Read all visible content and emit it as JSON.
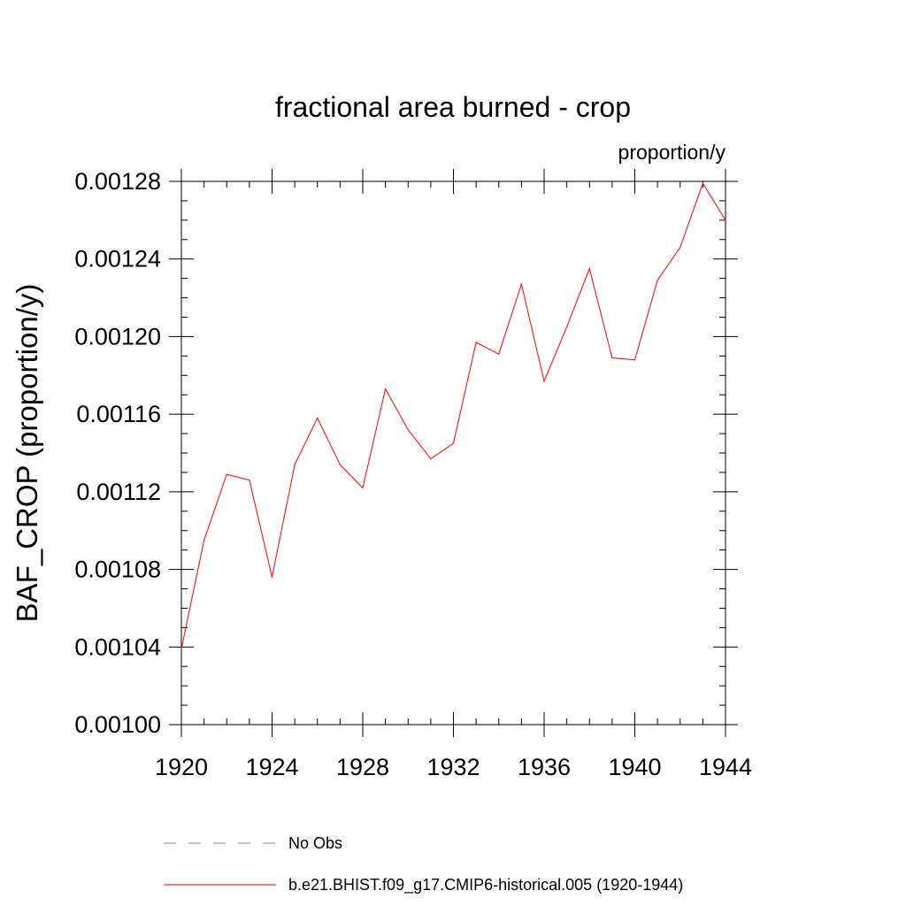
{
  "chart_data": {
    "type": "line",
    "title": "fractional area burned - crop",
    "units_label": "proportion/y",
    "xlabel": "",
    "ylabel": "BAF_CROP  (proportion/y)",
    "xlim": [
      1920,
      1944
    ],
    "ylim": [
      0.001,
      0.00128
    ],
    "x_ticks": [
      1920,
      1924,
      1928,
      1932,
      1936,
      1940,
      1944
    ],
    "x_tick_labels": [
      "1920",
      "1924",
      "1928",
      "1932",
      "1936",
      "1940",
      "1944"
    ],
    "y_ticks": [
      0.001,
      0.00104,
      0.00108,
      0.00112,
      0.00116,
      0.0012,
      0.00124,
      0.00128
    ],
    "y_tick_labels": [
      "0.00100",
      "0.00104",
      "0.00108",
      "0.00112",
      "0.00116",
      "0.00120",
      "0.00124",
      "0.00128"
    ],
    "grid": false,
    "series": [
      {
        "name": "b.e21.BHIST.f09_g17.CMIP6-historical.005 (1920-1944)",
        "color": "#ff0000",
        "x": [
          1920,
          1921,
          1922,
          1923,
          1924,
          1925,
          1926,
          1927,
          1928,
          1929,
          1930,
          1931,
          1932,
          1933,
          1934,
          1935,
          1936,
          1937,
          1938,
          1939,
          1940,
          1941,
          1942,
          1943,
          1944
        ],
        "values": [
          0.001039,
          0.001095,
          0.001129,
          0.001126,
          0.001076,
          0.001134,
          0.001158,
          0.001134,
          0.001122,
          0.001173,
          0.001152,
          0.001137,
          0.001145,
          0.001197,
          0.001191,
          0.001227,
          0.001177,
          0.001205,
          0.001235,
          0.001189,
          0.001188,
          0.001229,
          0.001246,
          0.001279,
          0.00126
        ]
      }
    ],
    "legend": {
      "position": "bottom",
      "entries": [
        {
          "label": "No Obs",
          "color": "#8080c0",
          "style": "dashed"
        },
        {
          "label": "b.e21.BHIST.f09_g17.CMIP6-historical.005 (1920-1944)",
          "color": "#ff0000",
          "style": "solid"
        }
      ]
    }
  }
}
